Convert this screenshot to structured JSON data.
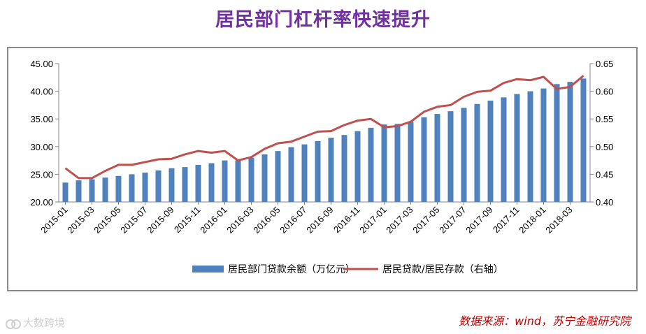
{
  "title": "居民部门杠杆率快速提升",
  "source": "数据来源：wind，苏宁金融研究院",
  "watermark": "大数跨境",
  "chart_data": {
    "type": "bar+line",
    "categories": [
      "2015-01",
      "2015-02",
      "2015-03",
      "2015-04",
      "2015-05",
      "2015-06",
      "2015-07",
      "2015-08",
      "2015-09",
      "2015-10",
      "2015-11",
      "2015-12",
      "2016-01",
      "2016-02",
      "2016-03",
      "2016-04",
      "2016-05",
      "2016-06",
      "2016-07",
      "2016-08",
      "2016-09",
      "2016-10",
      "2016-11",
      "2016-12",
      "2017-01",
      "2017-02",
      "2017-03",
      "2017-04",
      "2017-05",
      "2017-06",
      "2017-07",
      "2017-08",
      "2017-09",
      "2017-10",
      "2017-11",
      "2017-12",
      "2018-01",
      "2018-02",
      "2018-03",
      "2018-04"
    ],
    "x_tick_labels": [
      "2015-01",
      "2015-03",
      "2015-05",
      "2015-07",
      "2015-09",
      "2015-11",
      "2016-01",
      "2016-03",
      "2016-05",
      "2016-07",
      "2016-09",
      "2016-11",
      "2017-01",
      "2017-03",
      "2017-05",
      "2017-07",
      "2017-09",
      "2017-11",
      "2018-01",
      "2018-03"
    ],
    "series": [
      {
        "name": "居民部门贷款余额（万亿元）",
        "type": "bar",
        "axis": "left",
        "color": "#4f81bd",
        "values": [
          23.5,
          23.9,
          24.1,
          24.4,
          24.7,
          25.0,
          25.3,
          25.7,
          26.1,
          26.3,
          26.7,
          27.0,
          27.5,
          27.5,
          28.0,
          28.6,
          29.2,
          29.9,
          30.4,
          31.0,
          31.6,
          32.1,
          32.8,
          33.4,
          34.0,
          34.1,
          34.5,
          35.3,
          35.9,
          36.4,
          37.0,
          37.7,
          38.3,
          38.9,
          39.5,
          40.0,
          40.5,
          41.3,
          41.7,
          42.3
        ]
      },
      {
        "name": "居民贷款/居民存款（右轴）",
        "type": "line",
        "axis": "right",
        "color": "#c0504d",
        "values": [
          0.461,
          0.443,
          0.443,
          0.456,
          0.467,
          0.467,
          0.472,
          0.477,
          0.478,
          0.486,
          0.492,
          0.489,
          0.492,
          0.475,
          0.481,
          0.496,
          0.506,
          0.509,
          0.518,
          0.527,
          0.528,
          0.539,
          0.547,
          0.55,
          0.535,
          0.537,
          0.545,
          0.563,
          0.572,
          0.575,
          0.59,
          0.599,
          0.601,
          0.615,
          0.622,
          0.62,
          0.626,
          0.604,
          0.608,
          0.628
        ]
      }
    ],
    "y_left": {
      "min": 20,
      "max": 45,
      "ticks": [
        "20.00",
        "25.00",
        "30.00",
        "35.00",
        "40.00",
        "45.00"
      ]
    },
    "y_right": {
      "min": 0.4,
      "max": 0.65,
      "ticks": [
        "0.40",
        "0.45",
        "0.50",
        "0.55",
        "0.60",
        "0.65"
      ]
    },
    "grid": false,
    "legend_position": "bottom"
  }
}
